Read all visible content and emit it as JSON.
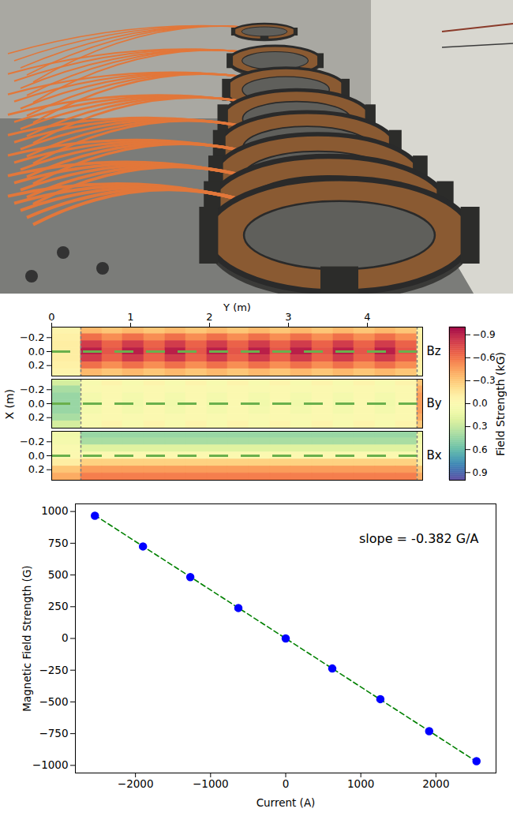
{
  "chart_data": [
    {
      "type": "heatmap",
      "xlabel": "Y (m)",
      "ylabel": "X (m)",
      "xlim": [
        0,
        4.7
      ],
      "xticks": [
        0,
        1,
        2,
        3,
        4
      ],
      "ylim": [
        -0.35,
        0.35
      ],
      "yticks": [
        {
          "value": -0.2,
          "label": "−0.2"
        },
        {
          "value": 0,
          "label": "0.0"
        },
        {
          "value": 0.2,
          "label": "0.2"
        }
      ],
      "x_edges": [
        0,
        0.37,
        0.64,
        0.9,
        1.17,
        1.44,
        1.7,
        1.97,
        2.23,
        2.5,
        2.77,
        3.03,
        3.3,
        3.57,
        3.83,
        4.1,
        4.36,
        4.63,
        4.7
      ],
      "y_edges": [
        -0.35,
        -0.25,
        -0.15,
        -0.05,
        0.05,
        0.15,
        0.25,
        0.35
      ],
      "color": "spectral",
      "panels": [
        {
          "name": "Bz",
          "values": [
            [
              -0.05,
              -0.35,
              -0.3,
              -0.35,
              -0.3,
              -0.35,
              -0.3,
              -0.35,
              -0.3,
              -0.35,
              -0.3,
              -0.35,
              -0.3,
              -0.35,
              -0.3,
              -0.35,
              -0.3,
              -0.05
            ],
            [
              -0.08,
              -0.6,
              -0.5,
              -0.6,
              -0.5,
              -0.6,
              -0.5,
              -0.6,
              -0.5,
              -0.6,
              -0.5,
              -0.6,
              -0.5,
              -0.6,
              -0.5,
              -0.6,
              -0.5,
              -0.08
            ],
            [
              -0.1,
              -0.8,
              -0.65,
              -0.8,
              -0.65,
              -0.8,
              -0.65,
              -0.8,
              -0.65,
              -0.8,
              -0.65,
              -0.8,
              -0.65,
              -0.8,
              -0.65,
              -0.8,
              -0.65,
              -0.1
            ],
            [
              -0.1,
              -0.9,
              -0.7,
              -0.9,
              -0.7,
              -0.9,
              -0.7,
              -0.9,
              -0.7,
              -0.9,
              -0.7,
              -0.9,
              -0.7,
              -0.9,
              -0.7,
              -0.9,
              -0.7,
              -0.1
            ],
            [
              -0.1,
              -0.8,
              -0.65,
              -0.8,
              -0.65,
              -0.8,
              -0.65,
              -0.8,
              -0.65,
              -0.8,
              -0.65,
              -0.8,
              -0.65,
              -0.8,
              -0.65,
              -0.8,
              -0.65,
              -0.1
            ],
            [
              -0.08,
              -0.6,
              -0.5,
              -0.6,
              -0.5,
              -0.6,
              -0.5,
              -0.6,
              -0.5,
              -0.6,
              -0.5,
              -0.6,
              -0.5,
              -0.6,
              -0.5,
              -0.6,
              -0.5,
              -0.08
            ],
            [
              -0.05,
              -0.35,
              -0.3,
              -0.35,
              -0.3,
              -0.35,
              -0.3,
              -0.35,
              -0.3,
              -0.35,
              -0.3,
              -0.35,
              -0.3,
              -0.35,
              -0.3,
              -0.35,
              -0.3,
              -0.05
            ]
          ]
        },
        {
          "name": "By",
          "values": [
            [
              0.25,
              0.05,
              -0.05,
              0.05,
              -0.05,
              0.05,
              -0.05,
              0.05,
              -0.05,
              0.05,
              -0.05,
              0.05,
              -0.05,
              0.05,
              -0.05,
              0.05,
              -0.05,
              -0.3
            ],
            [
              0.4,
              0.03,
              0,
              0.03,
              0,
              0.03,
              0,
              0.03,
              0,
              0.03,
              0,
              0.03,
              0,
              0.03,
              0,
              0.03,
              0,
              -0.4
            ],
            [
              0.45,
              0.08,
              0,
              0.08,
              0,
              0.08,
              0,
              0.08,
              0,
              0.08,
              0,
              0.08,
              0,
              0.08,
              0,
              0.08,
              0,
              -0.45
            ],
            [
              0.45,
              0.1,
              0,
              0.1,
              0,
              0.1,
              0,
              0.1,
              0,
              0.1,
              0,
              0.1,
              0,
              0.1,
              0,
              0.1,
              0,
              -0.45
            ],
            [
              0.45,
              0.08,
              0,
              0.08,
              0,
              0.08,
              0,
              0.08,
              0,
              0.08,
              0,
              0.08,
              0,
              0.08,
              0,
              0.08,
              0,
              -0.45
            ],
            [
              0.4,
              0.03,
              0,
              0.03,
              0,
              0.03,
              0,
              0.03,
              0,
              0.03,
              0,
              0.03,
              0,
              0.03,
              0,
              0.03,
              0,
              -0.4
            ],
            [
              0.25,
              0.05,
              -0.05,
              0.05,
              -0.05,
              0.05,
              -0.05,
              0.05,
              -0.05,
              0.05,
              -0.05,
              0.05,
              -0.05,
              0.05,
              -0.05,
              0.05,
              -0.05,
              -0.3
            ]
          ]
        },
        {
          "name": "Bx",
          "values": [
            [
              0.1,
              0.45,
              0.45,
              0.45,
              0.45,
              0.45,
              0.45,
              0.45,
              0.45,
              0.45,
              0.45,
              0.45,
              0.45,
              0.45,
              0.45,
              0.45,
              0.45,
              0.15
            ],
            [
              0.08,
              0.4,
              0.4,
              0.4,
              0.4,
              0.4,
              0.4,
              0.4,
              0.4,
              0.4,
              0.4,
              0.4,
              0.4,
              0.4,
              0.4,
              0.4,
              0.4,
              0.1
            ],
            [
              0.03,
              0.2,
              0.2,
              0.2,
              0.2,
              0.2,
              0.2,
              0.2,
              0.2,
              0.2,
              0.2,
              0.2,
              0.2,
              0.2,
              0.2,
              0.2,
              0.2,
              0.05
            ],
            [
              0,
              0,
              0,
              0,
              0,
              0,
              0,
              0,
              0,
              0,
              0,
              0,
              0,
              0,
              0,
              0,
              0,
              0
            ],
            [
              -0.1,
              -0.25,
              -0.25,
              -0.25,
              -0.25,
              -0.25,
              -0.25,
              -0.25,
              -0.25,
              -0.25,
              -0.25,
              -0.25,
              -0.25,
              -0.25,
              -0.25,
              -0.25,
              -0.25,
              -0.1
            ],
            [
              -0.3,
              -0.45,
              -0.45,
              -0.45,
              -0.45,
              -0.45,
              -0.45,
              -0.45,
              -0.45,
              -0.45,
              -0.45,
              -0.45,
              -0.45,
              -0.45,
              -0.45,
              -0.45,
              -0.45,
              -0.3
            ],
            [
              -0.4,
              -0.55,
              -0.55,
              -0.55,
              -0.55,
              -0.55,
              -0.55,
              -0.55,
              -0.55,
              -0.55,
              -0.55,
              -0.55,
              -0.55,
              -0.55,
              -0.55,
              -0.55,
              -0.55,
              -0.4
            ]
          ]
        }
      ],
      "dividers": {
        "values": [
          0.37,
          4.63
        ],
        "color": "#808080",
        "line_style": "dashed"
      },
      "guide": {
        "value": 0,
        "color": "#6ab04c",
        "line_style": "dashed"
      },
      "colorbar": {
        "label": "Field Strength (kG)",
        "lim": [
          -1,
          1
        ],
        "ticks": [
          {
            "value": -0.9,
            "label": "−0.9"
          },
          {
            "value": -0.6,
            "label": "−0.6"
          },
          {
            "value": -0.3,
            "label": "−0.3"
          },
          {
            "value": 0,
            "label": "0.0"
          },
          {
            "value": 0.3,
            "label": "0.3"
          },
          {
            "value": 0.6,
            "label": "0.6"
          },
          {
            "value": 0.9,
            "label": "0.9"
          }
        ]
      }
    },
    {
      "type": "scatter",
      "xlabel": "Current (A)",
      "ylabel": "Magnetic Field Strength (G)",
      "x": [
        -2540,
        -1900,
        -1270,
        -630,
        0,
        620,
        1260,
        1910,
        2540
      ],
      "values": [
        967,
        725,
        483,
        240,
        0,
        -237,
        -478,
        -730,
        -967
      ],
      "color": "#0000ff",
      "marker": "circle",
      "xlim": [
        -2800,
        2800
      ],
      "xticks": [
        {
          "value": -2000,
          "label": "−2000"
        },
        {
          "value": -1000,
          "label": "−1000"
        },
        0,
        1000,
        2000
      ],
      "ylim": [
        -1060,
        1060
      ],
      "yticks": [
        {
          "value": -1000,
          "label": "−1000"
        },
        {
          "value": -750,
          "label": "−750"
        },
        {
          "value": -500,
          "label": "−500"
        },
        {
          "value": -250,
          "label": "−250"
        },
        0,
        250,
        500,
        750,
        1000
      ],
      "fit": {
        "slope": -0.382,
        "intercept": 0,
        "color": "#008000",
        "line_style": "dashed"
      },
      "annotation": "slope = -0.382 G/A"
    }
  ]
}
